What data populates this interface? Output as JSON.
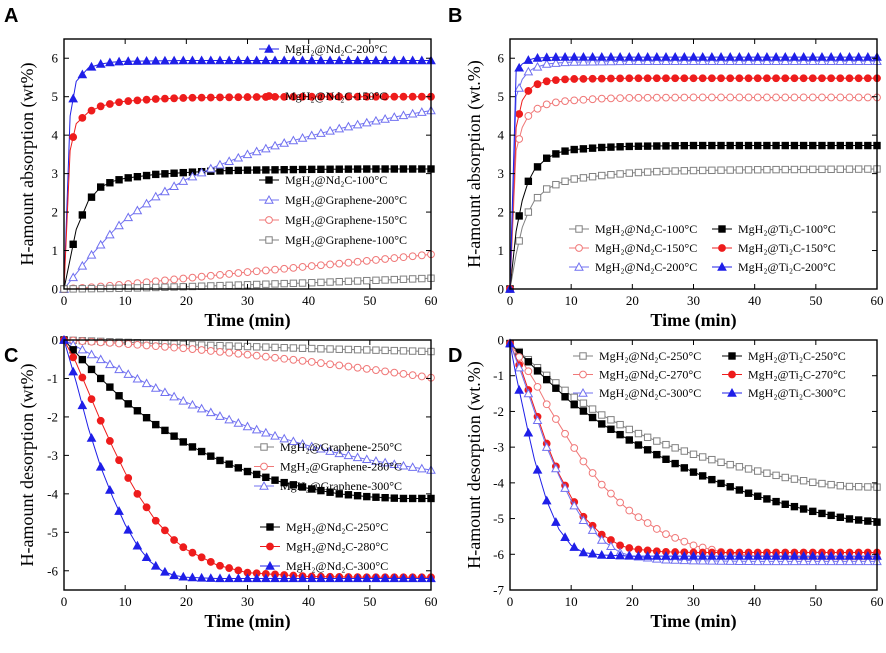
{
  "chart_data": [
    {
      "panel": "A",
      "type": "line",
      "xlabel": "Time (min)",
      "ylabel": "H-amount absorption (wt%)",
      "xlim": [
        0,
        60
      ],
      "ylim": [
        0,
        6.5
      ],
      "xticks": [
        0,
        10,
        20,
        30,
        40,
        50,
        60
      ],
      "yticks": [
        0,
        1,
        2,
        3,
        4,
        5,
        6
      ],
      "legend_position": "right",
      "series": [
        {
          "name": "MgH₂@Nd₂C-200°C",
          "color": "#1f1fe8",
          "marker": "triangle",
          "filled": true,
          "x": [
            0,
            1,
            2,
            4,
            6,
            8,
            10,
            15,
            20,
            25,
            30,
            40,
            50,
            60
          ],
          "y": [
            0,
            4.5,
            5.4,
            5.75,
            5.85,
            5.9,
            5.92,
            5.93,
            5.94,
            5.94,
            5.94,
            5.94,
            5.94,
            5.94
          ]
        },
        {
          "name": "MgH₂@Nd₂C-150°C",
          "color": "#ee1c1c",
          "marker": "circle",
          "filled": true,
          "x": [
            0,
            1,
            2,
            4,
            6,
            8,
            10,
            15,
            20,
            25,
            30,
            40,
            50,
            60
          ],
          "y": [
            0,
            3.6,
            4.3,
            4.6,
            4.75,
            4.83,
            4.88,
            4.94,
            4.97,
            4.98,
            4.99,
            5.0,
            5.0,
            5.0
          ]
        },
        {
          "name": "MgH₂@Nd₂C-100°C",
          "color": "#000000",
          "marker": "square",
          "filled": true,
          "x": [
            0,
            2,
            4,
            6,
            8,
            10,
            15,
            20,
            25,
            30,
            40,
            50,
            60
          ],
          "y": [
            0,
            1.55,
            2.3,
            2.65,
            2.8,
            2.88,
            2.98,
            3.03,
            3.07,
            3.09,
            3.11,
            3.12,
            3.12
          ]
        },
        {
          "name": "MgH₂@Graphene-200°C",
          "color": "#7070f0",
          "marker": "triangle",
          "filled": false,
          "x": [
            0,
            2,
            4,
            6,
            8,
            10,
            15,
            20,
            25,
            30,
            35,
            40,
            45,
            50,
            55,
            60
          ],
          "y": [
            0,
            0.4,
            0.8,
            1.15,
            1.5,
            1.8,
            2.4,
            2.85,
            3.2,
            3.5,
            3.75,
            3.97,
            4.17,
            4.34,
            4.5,
            4.64
          ]
        },
        {
          "name": "MgH₂@Graphene-150°C",
          "color": "#f07878",
          "marker": "circle",
          "filled": false,
          "x": [
            0,
            5,
            10,
            15,
            20,
            25,
            30,
            35,
            40,
            45,
            50,
            55,
            60
          ],
          "y": [
            0,
            0.05,
            0.12,
            0.2,
            0.28,
            0.36,
            0.44,
            0.51,
            0.59,
            0.66,
            0.74,
            0.82,
            0.9
          ]
        },
        {
          "name": "MgH₂@Graphene-100°C",
          "color": "#808080",
          "marker": "square",
          "filled": false,
          "x": [
            0,
            10,
            20,
            30,
            40,
            50,
            60
          ],
          "y": [
            0,
            0.02,
            0.06,
            0.11,
            0.16,
            0.22,
            0.28
          ]
        }
      ],
      "legend_order": [
        0,
        1,
        2,
        3,
        4,
        5
      ]
    },
    {
      "panel": "B",
      "type": "line",
      "xlabel": "Time (min)",
      "ylabel": "H-amount absorption (wt.%)",
      "xlim": [
        0,
        60
      ],
      "ylim": [
        0,
        6.5
      ],
      "xticks": [
        0,
        10,
        20,
        30,
        40,
        50,
        60
      ],
      "yticks": [
        0,
        1,
        2,
        3,
        4,
        5,
        6
      ],
      "legend_position": "bottom",
      "series": [
        {
          "name": "MgH₂@Nd₂C-100°C",
          "color": "#808080",
          "marker": "square",
          "filled": false,
          "x": [
            0,
            1,
            2,
            3,
            4,
            6,
            8,
            10,
            15,
            20,
            25,
            30,
            40,
            50,
            60
          ],
          "y": [
            0,
            0.9,
            1.6,
            2.0,
            2.3,
            2.6,
            2.75,
            2.85,
            2.95,
            3.02,
            3.06,
            3.08,
            3.1,
            3.11,
            3.12
          ]
        },
        {
          "name": "MgH₂@Ti₂C-100°C",
          "color": "#000000",
          "marker": "square",
          "filled": true,
          "x": [
            0,
            1,
            2,
            3,
            4,
            6,
            8,
            10,
            15,
            20,
            25,
            30,
            40,
            50,
            60
          ],
          "y": [
            0,
            1.5,
            2.3,
            2.8,
            3.1,
            3.4,
            3.55,
            3.62,
            3.68,
            3.71,
            3.72,
            3.73,
            3.73,
            3.73,
            3.73
          ]
        },
        {
          "name": "MgH₂@Nd₂C-150°C",
          "color": "#f07878",
          "marker": "circle",
          "filled": false,
          "x": [
            0,
            1,
            2,
            3,
            4,
            6,
            8,
            10,
            15,
            20,
            30,
            40,
            50,
            60
          ],
          "y": [
            0,
            3.6,
            4.2,
            4.5,
            4.65,
            4.8,
            4.87,
            4.9,
            4.95,
            4.97,
            4.98,
            4.98,
            4.98,
            4.98
          ]
        },
        {
          "name": "MgH₂@Ti₂C-150°C",
          "color": "#ee1c1c",
          "marker": "circle",
          "filled": true,
          "x": [
            0,
            1,
            2,
            3,
            4,
            6,
            8,
            10,
            15,
            20,
            30,
            40,
            50,
            60
          ],
          "y": [
            0,
            4.2,
            4.9,
            5.15,
            5.3,
            5.4,
            5.44,
            5.46,
            5.47,
            5.48,
            5.48,
            5.48,
            5.48,
            5.48
          ]
        },
        {
          "name": "MgH₂@Nd₂C-200°C",
          "color": "#7070f0",
          "marker": "triangle",
          "filled": false,
          "x": [
            0,
            1,
            2,
            3,
            4,
            6,
            8,
            10,
            15,
            20,
            30,
            40,
            50,
            60
          ],
          "y": [
            0,
            5.0,
            5.45,
            5.65,
            5.75,
            5.85,
            5.88,
            5.9,
            5.91,
            5.92,
            5.92,
            5.92,
            5.92,
            5.92
          ]
        },
        {
          "name": "MgH₂@Ti₂C-200°C",
          "color": "#1f1fe8",
          "marker": "triangle",
          "filled": true,
          "x": [
            0,
            1,
            2,
            3,
            4,
            6,
            8,
            10,
            15,
            20,
            30,
            40,
            50,
            60
          ],
          "y": [
            0,
            5.65,
            5.85,
            5.95,
            6.0,
            6.02,
            6.03,
            6.03,
            6.03,
            6.03,
            6.03,
            6.03,
            6.03,
            6.03
          ]
        }
      ],
      "legend_order": [
        0,
        1,
        2,
        3,
        4,
        5
      ]
    },
    {
      "panel": "C",
      "type": "line",
      "xlabel": "Time (min)",
      "ylabel": "H-amount desorption (wt%)",
      "xlim": [
        0,
        60
      ],
      "ylim": [
        -6.5,
        0
      ],
      "xticks": [
        0,
        10,
        20,
        30,
        40,
        50,
        60
      ],
      "yticks": [
        0,
        -1,
        -2,
        -3,
        -4,
        -5,
        -6
      ],
      "legend_position": "right",
      "series": [
        {
          "name": "MgH₂@Graphene-250°C",
          "color": "#808080",
          "marker": "square",
          "filled": false,
          "x": [
            0,
            10,
            20,
            30,
            40,
            50,
            60
          ],
          "y": [
            0,
            -0.06,
            -0.12,
            -0.17,
            -0.22,
            -0.26,
            -0.3
          ]
        },
        {
          "name": "MgH₂@Graphene-280°C",
          "color": "#f07878",
          "marker": "circle",
          "filled": false,
          "x": [
            0,
            10,
            20,
            30,
            40,
            50,
            60
          ],
          "y": [
            0,
            -0.1,
            -0.22,
            -0.38,
            -0.56,
            -0.76,
            -0.98
          ]
        },
        {
          "name": "MgH₂@Graphene-300°C",
          "color": "#7070f0",
          "marker": "triangle",
          "filled": false,
          "x": [
            0,
            5,
            10,
            15,
            20,
            25,
            30,
            35,
            40,
            45,
            50,
            55,
            60
          ],
          "y": [
            0,
            -0.42,
            -0.85,
            -1.25,
            -1.62,
            -1.95,
            -2.25,
            -2.52,
            -2.75,
            -2.95,
            -3.12,
            -3.26,
            -3.38
          ]
        },
        {
          "name": "MgH₂@Nd₂C-250°C",
          "color": "#000000",
          "marker": "square",
          "filled": true,
          "x": [
            0,
            5,
            10,
            15,
            20,
            25,
            30,
            35,
            40,
            45,
            50,
            55,
            60
          ],
          "y": [
            0,
            -0.85,
            -1.6,
            -2.2,
            -2.7,
            -3.1,
            -3.42,
            -3.67,
            -3.86,
            -4.0,
            -4.08,
            -4.12,
            -4.12
          ]
        },
        {
          "name": "MgH₂@Nd₂C-280°C",
          "color": "#ee1c1c",
          "marker": "circle",
          "filled": true,
          "x": [
            0,
            2,
            4,
            6,
            8,
            10,
            12,
            15,
            18,
            20,
            25,
            30,
            40,
            50,
            60
          ],
          "y": [
            0,
            -0.6,
            -1.35,
            -2.1,
            -2.8,
            -3.45,
            -4.0,
            -4.7,
            -5.2,
            -5.45,
            -5.85,
            -6.05,
            -6.15,
            -6.17,
            -6.17
          ]
        },
        {
          "name": "MgH₂@Nd₂C-300°C",
          "color": "#1f1fe8",
          "marker": "triangle",
          "filled": true,
          "x": [
            0,
            2,
            4,
            6,
            8,
            10,
            12,
            14,
            16,
            18,
            20,
            25,
            30,
            40,
            50,
            60
          ],
          "y": [
            0,
            -1.1,
            -2.3,
            -3.3,
            -4.1,
            -4.8,
            -5.35,
            -5.75,
            -6.0,
            -6.12,
            -6.17,
            -6.2,
            -6.2,
            -6.2,
            -6.2,
            -6.2
          ]
        }
      ],
      "legend_order": [
        0,
        1,
        2,
        3,
        4,
        5
      ]
    },
    {
      "panel": "D",
      "type": "line",
      "xlabel": "Time (min)",
      "ylabel": "H-amount desorption (wt.%)",
      "xlim": [
        0,
        60
      ],
      "ylim": [
        -7,
        0
      ],
      "xticks": [
        0,
        10,
        20,
        30,
        40,
        50,
        60
      ],
      "yticks": [
        0,
        -1,
        -2,
        -3,
        -4,
        -5,
        -6,
        -7
      ],
      "legend_position": "top",
      "series": [
        {
          "name": "MgH₂@Nd₂C-250°C",
          "color": "#808080",
          "marker": "square",
          "filled": false,
          "x": [
            0,
            5,
            10,
            15,
            20,
            25,
            30,
            35,
            40,
            45,
            50,
            55,
            60
          ],
          "y": [
            -0.1,
            -0.85,
            -1.55,
            -2.1,
            -2.55,
            -2.9,
            -3.2,
            -3.45,
            -3.65,
            -3.85,
            -4.0,
            -4.1,
            -4.12
          ]
        },
        {
          "name": "MgH₂@Ti₂C-250°C",
          "color": "#000000",
          "marker": "square",
          "filled": true,
          "x": [
            0,
            5,
            10,
            15,
            20,
            25,
            30,
            35,
            40,
            45,
            50,
            55,
            60
          ],
          "y": [
            -0.1,
            -0.95,
            -1.75,
            -2.35,
            -2.85,
            -3.3,
            -3.7,
            -4.05,
            -4.35,
            -4.6,
            -4.82,
            -5.0,
            -5.1
          ]
        },
        {
          "name": "MgH₂@Nd₂C-270°C",
          "color": "#f07878",
          "marker": "circle",
          "filled": false,
          "x": [
            0,
            2,
            4,
            6,
            8,
            10,
            12,
            15,
            18,
            20,
            25,
            30,
            35,
            40,
            50,
            60
          ],
          "y": [
            -0.1,
            -0.6,
            -1.15,
            -1.8,
            -2.35,
            -2.9,
            -3.4,
            -4.05,
            -4.55,
            -4.85,
            -5.4,
            -5.75,
            -5.95,
            -6.05,
            -6.1,
            -6.1
          ]
        },
        {
          "name": "MgH₂@Ti₂C-270°C",
          "color": "#ee1c1c",
          "marker": "circle",
          "filled": true,
          "x": [
            0,
            2,
            4,
            6,
            8,
            10,
            12,
            15,
            18,
            20,
            25,
            30,
            40,
            50,
            60
          ],
          "y": [
            -0.1,
            -0.9,
            -1.9,
            -2.9,
            -3.75,
            -4.4,
            -4.95,
            -5.45,
            -5.75,
            -5.85,
            -5.93,
            -5.95,
            -5.95,
            -5.95,
            -5.95
          ]
        },
        {
          "name": "MgH₂@Nd₂C-300°C",
          "color": "#7070f0",
          "marker": "triangle",
          "filled": false,
          "x": [
            0,
            2,
            4,
            6,
            8,
            10,
            12,
            15,
            18,
            20,
            25,
            30,
            40,
            50,
            60
          ],
          "y": [
            -0.1,
            -1.0,
            -2.0,
            -3.0,
            -3.8,
            -4.5,
            -5.05,
            -5.6,
            -5.95,
            -6.05,
            -6.15,
            -6.18,
            -6.2,
            -6.2,
            -6.2
          ]
        },
        {
          "name": "MgH₂@Ti₂C-300°C",
          "color": "#1f1fe8",
          "marker": "triangle",
          "filled": true,
          "x": [
            0,
            1,
            2,
            3,
            4,
            6,
            8,
            10,
            12,
            15,
            20,
            30,
            40,
            50,
            60
          ],
          "y": [
            -0.1,
            -1.0,
            -1.8,
            -2.6,
            -3.35,
            -4.5,
            -5.3,
            -5.75,
            -5.95,
            -6.02,
            -6.05,
            -6.05,
            -6.05,
            -6.05,
            -6.05
          ]
        }
      ],
      "legend_order": [
        0,
        1,
        2,
        3,
        4,
        5
      ]
    }
  ]
}
